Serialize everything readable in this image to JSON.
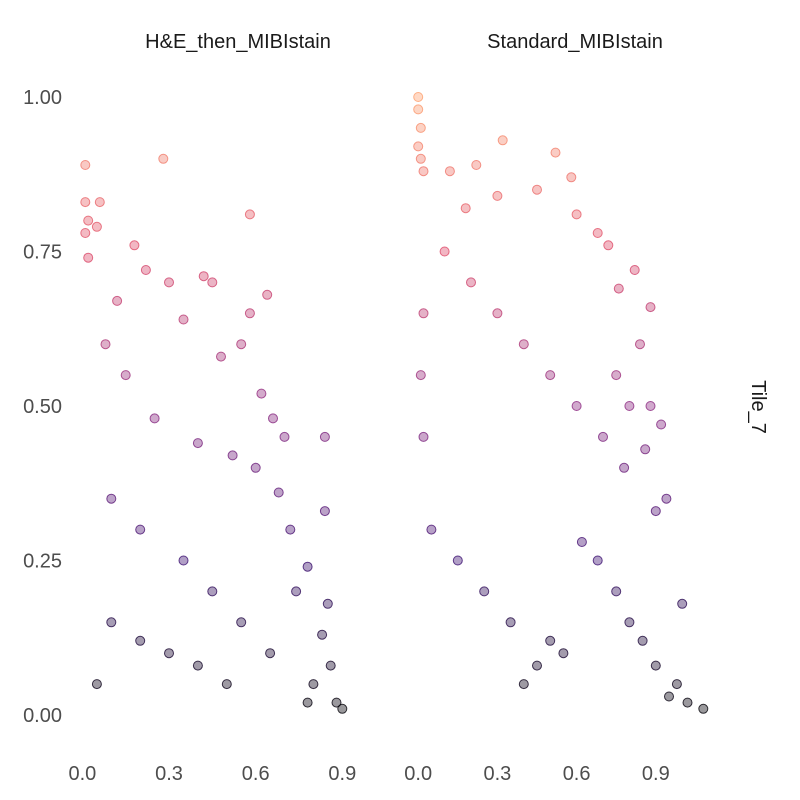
{
  "chart_data": {
    "type": "scatter",
    "row_strip_label": "Tile_7",
    "grid": false,
    "legend": "none",
    "point_opacity": 0.4,
    "color_scale": [
      "#000004",
      "#3b0f70",
      "#8c2981",
      "#de4968",
      "#fe9f6d"
    ],
    "color_note": "points colored by y value (magma-like ramp)",
    "y_axis": {
      "range": [
        0,
        1
      ],
      "ticks": [
        0.0,
        0.25,
        0.5,
        0.75,
        1.0
      ],
      "tick_labels": [
        "0.00",
        "0.25",
        "0.50",
        "0.75",
        "1.00"
      ]
    },
    "panels": [
      {
        "title": "H&E_then_MIBIstain",
        "x_range": [
          -0.05,
          1.1
        ],
        "x_ticks": [
          0.0,
          0.3,
          0.6,
          0.9
        ],
        "x_tick_labels": [
          "0.0",
          "0.3",
          "0.6",
          "0.9"
        ],
        "points": [
          [
            0.01,
            0.89
          ],
          [
            0.28,
            0.9
          ],
          [
            0.58,
            0.81
          ],
          [
            0.01,
            0.83
          ],
          [
            0.02,
            0.8
          ],
          [
            0.01,
            0.78
          ],
          [
            0.06,
            0.83
          ],
          [
            0.18,
            0.76
          ],
          [
            0.05,
            0.79
          ],
          [
            0.02,
            0.74
          ],
          [
            0.42,
            0.71
          ],
          [
            0.45,
            0.7
          ],
          [
            0.22,
            0.72
          ],
          [
            0.3,
            0.7
          ],
          [
            0.64,
            0.68
          ],
          [
            0.58,
            0.65
          ],
          [
            0.55,
            0.6
          ],
          [
            0.12,
            0.67
          ],
          [
            0.35,
            0.64
          ],
          [
            0.48,
            0.58
          ],
          [
            0.62,
            0.52
          ],
          [
            0.66,
            0.48
          ],
          [
            0.7,
            0.45
          ],
          [
            0.84,
            0.45
          ],
          [
            0.6,
            0.4
          ],
          [
            0.52,
            0.42
          ],
          [
            0.4,
            0.44
          ],
          [
            0.25,
            0.48
          ],
          [
            0.15,
            0.55
          ],
          [
            0.08,
            0.6
          ],
          [
            0.68,
            0.36
          ],
          [
            0.72,
            0.3
          ],
          [
            0.78,
            0.24
          ],
          [
            0.74,
            0.2
          ],
          [
            0.84,
            0.33
          ],
          [
            0.85,
            0.18
          ],
          [
            0.83,
            0.13
          ],
          [
            0.86,
            0.08
          ],
          [
            0.8,
            0.05
          ],
          [
            0.88,
            0.02
          ],
          [
            0.9,
            0.01
          ],
          [
            0.78,
            0.02
          ],
          [
            0.65,
            0.1
          ],
          [
            0.55,
            0.15
          ],
          [
            0.45,
            0.2
          ],
          [
            0.35,
            0.25
          ],
          [
            0.2,
            0.3
          ],
          [
            0.1,
            0.35
          ],
          [
            0.5,
            0.05
          ],
          [
            0.4,
            0.08
          ],
          [
            0.3,
            0.1
          ],
          [
            0.2,
            0.12
          ],
          [
            0.1,
            0.15
          ],
          [
            0.05,
            0.05
          ]
        ]
      },
      {
        "title": "Standard_MIBIstain",
        "x_range": [
          -0.05,
          1.2
        ],
        "x_ticks": [
          0.0,
          0.3,
          0.6,
          0.9
        ],
        "x_tick_labels": [
          "0.0",
          "0.3",
          "0.6",
          "0.9"
        ],
        "points": [
          [
            0.0,
            1.0
          ],
          [
            0.0,
            0.98
          ],
          [
            0.01,
            0.95
          ],
          [
            0.0,
            0.92
          ],
          [
            0.01,
            0.9
          ],
          [
            0.02,
            0.88
          ],
          [
            0.32,
            0.93
          ],
          [
            0.52,
            0.91
          ],
          [
            0.58,
            0.87
          ],
          [
            0.22,
            0.89
          ],
          [
            0.12,
            0.88
          ],
          [
            0.45,
            0.85
          ],
          [
            0.3,
            0.84
          ],
          [
            0.6,
            0.81
          ],
          [
            0.18,
            0.82
          ],
          [
            0.68,
            0.78
          ],
          [
            0.72,
            0.76
          ],
          [
            0.82,
            0.72
          ],
          [
            0.76,
            0.69
          ],
          [
            0.88,
            0.66
          ],
          [
            0.84,
            0.6
          ],
          [
            0.75,
            0.55
          ],
          [
            0.8,
            0.5
          ],
          [
            0.88,
            0.5
          ],
          [
            0.92,
            0.47
          ],
          [
            0.86,
            0.43
          ],
          [
            0.94,
            0.35
          ],
          [
            0.9,
            0.33
          ],
          [
            0.78,
            0.4
          ],
          [
            0.7,
            0.45
          ],
          [
            0.6,
            0.5
          ],
          [
            0.5,
            0.55
          ],
          [
            0.4,
            0.6
          ],
          [
            0.3,
            0.65
          ],
          [
            0.2,
            0.7
          ],
          [
            0.1,
            0.75
          ],
          [
            1.0,
            0.18
          ],
          [
            0.98,
            0.05
          ],
          [
            1.08,
            0.01
          ],
          [
            1.02,
            0.02
          ],
          [
            0.95,
            0.03
          ],
          [
            0.9,
            0.08
          ],
          [
            0.85,
            0.12
          ],
          [
            0.8,
            0.15
          ],
          [
            0.75,
            0.2
          ],
          [
            0.68,
            0.25
          ],
          [
            0.62,
            0.28
          ],
          [
            0.55,
            0.1
          ],
          [
            0.5,
            0.12
          ],
          [
            0.45,
            0.08
          ],
          [
            0.4,
            0.05
          ],
          [
            0.35,
            0.15
          ],
          [
            0.25,
            0.2
          ],
          [
            0.15,
            0.25
          ],
          [
            0.05,
            0.3
          ],
          [
            0.02,
            0.45
          ],
          [
            0.01,
            0.55
          ],
          [
            0.02,
            0.65
          ]
        ]
      }
    ]
  }
}
